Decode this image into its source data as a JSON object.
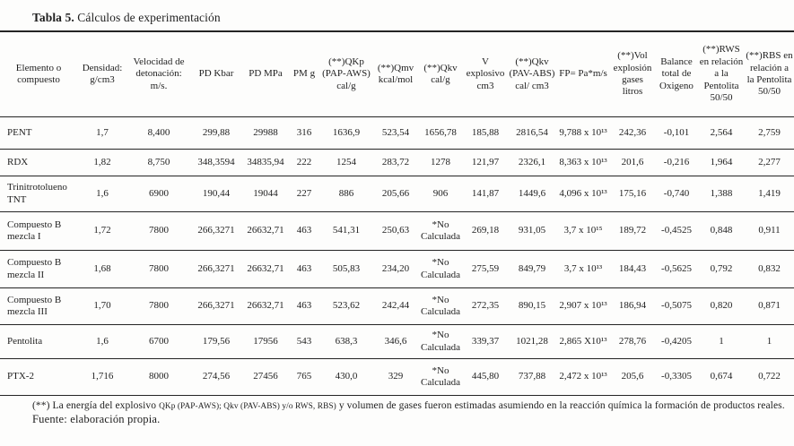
{
  "title": {
    "bold": "Tabla 5.",
    "rest": " Cálculos de experimentación"
  },
  "table": {
    "headers": [
      "Elemento o compuesto",
      "Densidad: g/cm3",
      "Velocidad de detonación: m/s.",
      "PD Kbar",
      "PD MPa",
      "PM g",
      "(**)QKp (PAP-AWS) cal/g",
      "(**)Qmv kcal/mol",
      "(**)Qkv cal/g",
      "V explosivo cm3",
      "(**)Qkv (PAV-ABS) cal/ cm3",
      "FP= Pa*m/s",
      "(**)Vol explosión gases litros",
      "Balance total de Oxigeno",
      "(**)RWS en relación a la Pentolita 50/50",
      "(**)RBS en relación a la Pentolita 50/50"
    ],
    "rows": [
      [
        "PENT",
        "1,7",
        "8,400",
        "299,88",
        "29988",
        "316",
        "1636,9",
        "523,54",
        "1656,78",
        "185,88",
        "2816,54",
        "9,788 x 10¹³",
        "242,36",
        "-0,101",
        "2,564",
        "2,759"
      ],
      [
        "RDX",
        "1,82",
        "8,750",
        "348,3594",
        "34835,94",
        "222",
        "1254",
        "283,72",
        "1278",
        "121,97",
        "2326,1",
        "8,363 x 10¹³",
        "201,6",
        "-0,216",
        "1,964",
        "2,277"
      ],
      [
        "Trinitrotolueno TNT",
        "1,6",
        "6900",
        "190,44",
        "19044",
        "227",
        "886",
        "205,66",
        "906",
        "141,87",
        "1449,6",
        "4,096 x 10¹³",
        "175,16",
        "-0,740",
        "1,388",
        "1,419"
      ],
      [
        "Compuesto B mezcla I",
        "1,72",
        "7800",
        "266,3271",
        "26632,71",
        "463",
        "541,31",
        "250,63",
        "*No Calculada",
        "269,18",
        "931,05",
        "3,7 x 10¹⁵",
        "189,72",
        "-0,4525",
        "0,848",
        "0,911"
      ],
      [
        "Compuesto B mezcla II",
        "1,68",
        "7800",
        "266,3271",
        "26632,71",
        "463",
        "505,83",
        "234,20",
        "*No Calculada",
        "275,59",
        "849,79",
        "3,7 x 10¹³",
        "184,43",
        "-0,5625",
        "0,792",
        "0,832"
      ],
      [
        "Compuesto B mezcla III",
        "1,70",
        "7800",
        "266,3271",
        "26632,71",
        "463",
        "523,62",
        "242,44",
        "*No Calculada",
        "272,35",
        "890,15",
        "2,907 x 10¹³",
        "186,94",
        "-0,5075",
        "0,820",
        "0,871"
      ],
      [
        "Pentolita",
        "1,6",
        "6700",
        "179,56",
        "17956",
        "543",
        "638,3",
        "346,6",
        "*No Calculada",
        "339,37",
        "1021,28",
        "2,865 X10¹³",
        "278,76",
        "-0,4205",
        "1",
        "1"
      ],
      [
        "PTX-2",
        "1,716",
        "8000",
        "274,56",
        "27456",
        "765",
        "430,0",
        "329",
        "*No Calculada",
        "445,80",
        "737,88",
        "2,472 x 10¹³",
        "205,6",
        "-0,3305",
        "0,674",
        "0,722"
      ]
    ]
  },
  "footnote": {
    "part1": "(**) La energía del explosivo ",
    "part2": "QKp (PAP-AWS); Qkv (PAV-ABS) y/o RWS, RBS)",
    "part3": "  y volumen de gases fueron estimadas asumiendo en la reacción química la formación de productos reales."
  },
  "source": "Fuente: elaboración propia."
}
